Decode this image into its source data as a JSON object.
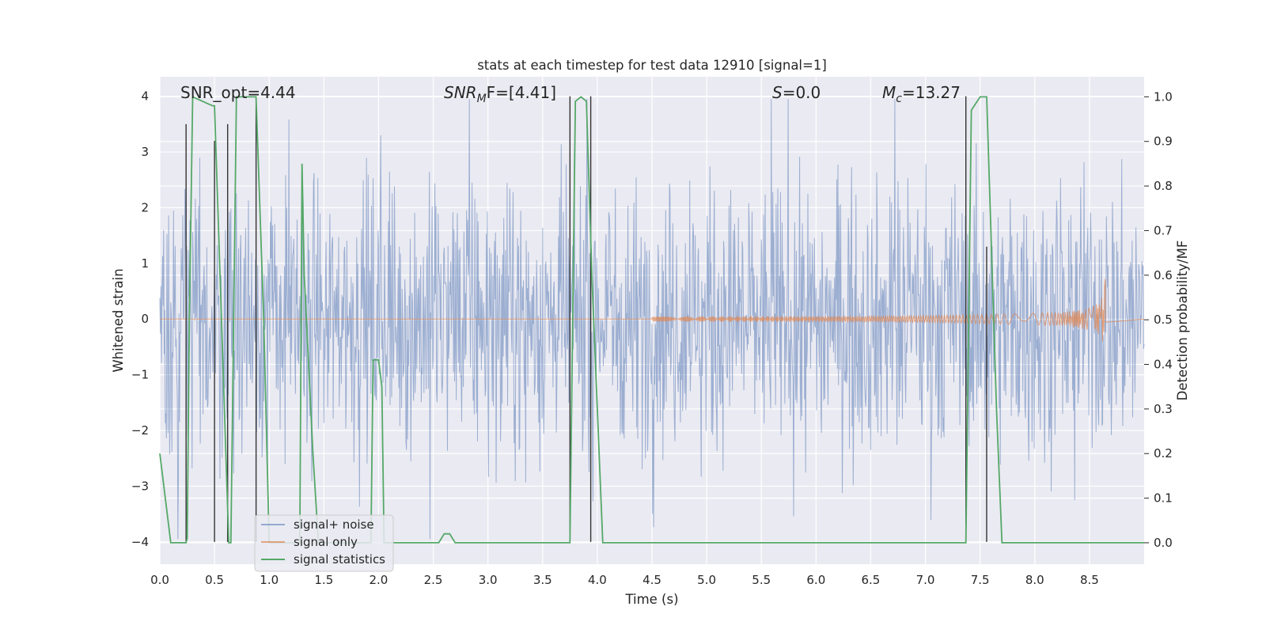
{
  "chart_data": {
    "type": "line",
    "title": "stats at each timestep for test data 12910 [signal=1]",
    "xlabel": "Time (s)",
    "ylabel_left": "Whitened strain",
    "ylabel_right": "Detection probability/MF",
    "xlim": [
      0.0,
      9.0
    ],
    "ylim_left": [
      -4.4,
      4.35
    ],
    "ylim_right": [
      -0.048,
      1.045
    ],
    "x_ticks": [
      "0.0",
      "0.5",
      "1.0",
      "1.5",
      "2.0",
      "2.5",
      "3.0",
      "3.5",
      "4.0",
      "4.5",
      "5.0",
      "5.5",
      "6.0",
      "6.5",
      "7.0",
      "7.5",
      "8.0",
      "8.5"
    ],
    "y_ticks_left": [
      "−4",
      "−3",
      "−2",
      "−1",
      "0",
      "1",
      "2",
      "3",
      "4"
    ],
    "y_ticks_right": [
      "0.0",
      "0.1",
      "0.2",
      "0.3",
      "0.4",
      "0.5",
      "0.6",
      "0.7",
      "0.8",
      "0.9",
      "1.0"
    ],
    "annotations": {
      "snr_opt": "SNR_opt=4.44",
      "snr_mf_sym": "SNR",
      "snr_mf_sub": "M",
      "snr_mf_rest": "F=[4.41]",
      "s_sym": "S",
      "s_rest": "=0.0",
      "mc_sym": "M",
      "mc_sub": "c",
      "mc_rest": "=13.27"
    },
    "legend": {
      "placement": "lower-left",
      "entries": [
        "signal+ noise",
        "signal only",
        "signal statistics"
      ]
    },
    "series": [
      {
        "name": "signal+ noise",
        "axis": "left",
        "color": "#4c72b0",
        "description": "whitened noisy strain, roughly ±1.5 typical with spikes to ±4",
        "amplitude_envelope": [
          1.5,
          3.9,
          -3.8
        ]
      },
      {
        "name": "signal only",
        "axis": "left",
        "color": "#dd8452",
        "chirp_start": 4.5,
        "chirp_peak_time": 8.65,
        "chirp_peak_amplitude": 0.95
      },
      {
        "name": "signal statistics",
        "axis": "right",
        "color": "#55a868",
        "x": [
          0.0,
          0.1,
          0.18,
          0.24,
          0.25,
          0.27,
          0.3,
          0.48,
          0.5,
          0.63,
          0.65,
          0.7,
          0.75,
          0.88,
          0.95,
          1.0,
          1.05,
          1.2,
          1.28,
          1.3,
          1.32,
          1.4,
          1.45,
          1.5,
          1.8,
          1.93,
          1.95,
          2.0,
          2.03,
          2.05,
          2.1,
          2.45,
          2.5,
          2.55,
          2.6,
          2.65,
          2.7,
          2.75,
          3.7,
          3.75,
          3.8,
          3.85,
          3.9,
          3.95,
          4.05,
          4.1,
          7.35,
          7.37,
          7.42,
          7.5,
          7.56,
          7.65,
          7.7,
          8.45,
          8.55,
          8.65,
          9.0
        ],
        "values": [
          0.2,
          0.0,
          0.0,
          0.0,
          0.01,
          0.5,
          1.0,
          0.98,
          0.98,
          0.0,
          0.0,
          1.0,
          1.0,
          1.0,
          0.5,
          0.0,
          0.0,
          0.0,
          0.0,
          0.85,
          0.6,
          0.2,
          0.0,
          0.0,
          0.0,
          0.0,
          0.41,
          0.41,
          0.35,
          0.0,
          0.0,
          0.0,
          0.0,
          0.0,
          0.02,
          0.02,
          0.0,
          0.0,
          0.0,
          0.0,
          0.99,
          1.0,
          0.99,
          0.6,
          0.0,
          0.0,
          0.0,
          0.0,
          0.97,
          1.0,
          1.0,
          0.3,
          0.0,
          0.0,
          0.0,
          0.0,
          0.0
        ]
      },
      {
        "name": "detection markers",
        "axis": "left",
        "color": "#333333",
        "x": [
          0.24,
          0.5,
          0.62,
          0.88,
          3.75,
          3.94,
          7.37,
          7.56
        ],
        "heights": [
          3.5,
          3.2,
          3.5,
          4.0,
          4.0,
          4.0,
          4.0,
          1.3
        ]
      }
    ]
  }
}
